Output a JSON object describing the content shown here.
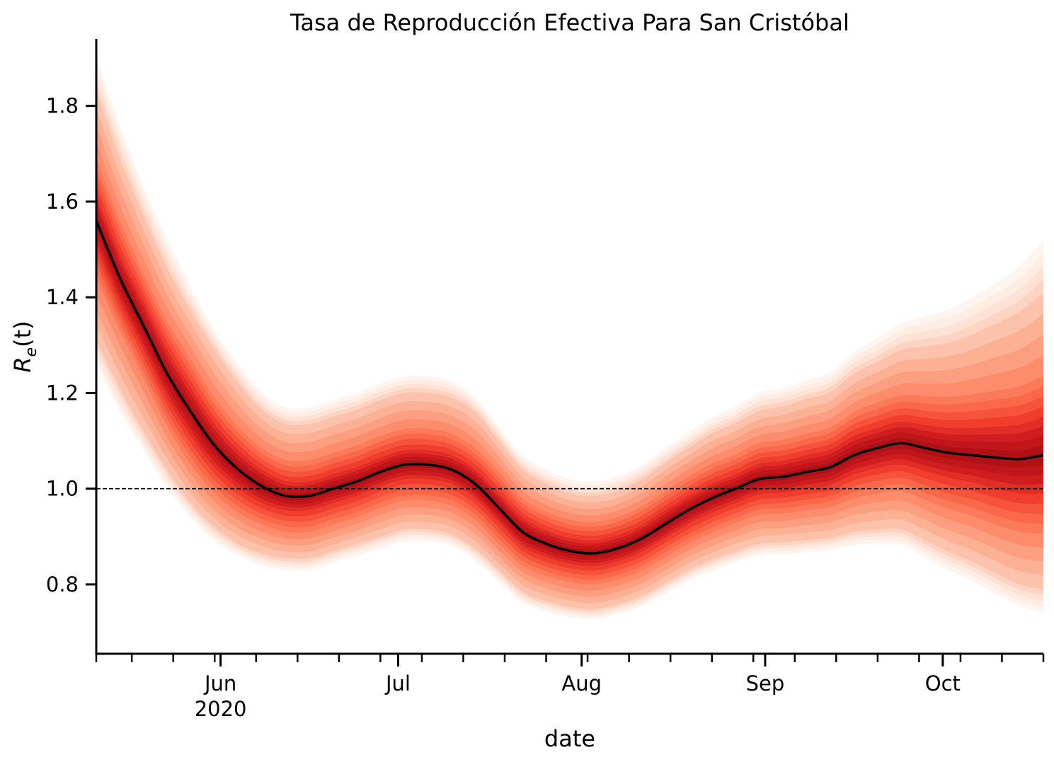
{
  "chart_data": {
    "type": "line",
    "title": "Tasa de Reproducción Efectiva Para San Cristóbal",
    "xlabel": "date",
    "ylabel": {
      "base": "R",
      "subscript": "e",
      "suffix": "(t)"
    },
    "xlim": [
      "2020-05-11",
      "2020-10-18"
    ],
    "ylim": [
      0.655,
      1.94
    ],
    "y_ticks": [
      "0.8",
      "1.0",
      "1.2",
      "1.4",
      "1.6",
      "1.8"
    ],
    "x_major_ticks": [
      {
        "date": "2020-06-01",
        "label": "Jun",
        "sublabel": "2020"
      },
      {
        "date": "2020-07-01",
        "label": "Jul"
      },
      {
        "date": "2020-08-01",
        "label": "Aug"
      },
      {
        "date": "2020-09-01",
        "label": "Sep"
      },
      {
        "date": "2020-10-01",
        "label": "Oct"
      }
    ],
    "x_minor_ticks": [
      "2020-05-11",
      "2020-05-17",
      "2020-05-24",
      "2020-05-31",
      "2020-06-07",
      "2020-06-14",
      "2020-06-21",
      "2020-06-28",
      "2020-07-05",
      "2020-07-12",
      "2020-07-19",
      "2020-07-26",
      "2020-08-02",
      "2020-08-09",
      "2020-08-16",
      "2020-08-23",
      "2020-08-30",
      "2020-09-06",
      "2020-09-13",
      "2020-09-20",
      "2020-09-27",
      "2020-10-04",
      "2020-10-11",
      "2020-10-18"
    ],
    "reference_line": {
      "y": 1.0,
      "style": "dashed"
    },
    "grid": false,
    "series": [
      {
        "x": [
          "2020-05-11",
          "2020-05-15",
          "2020-05-19",
          "2020-05-23",
          "2020-05-27",
          "2020-05-31",
          "2020-06-04",
          "2020-06-08",
          "2020-06-12",
          "2020-06-16",
          "2020-06-20",
          "2020-06-24",
          "2020-06-28",
          "2020-07-02",
          "2020-07-06",
          "2020-07-10",
          "2020-07-14",
          "2020-07-18",
          "2020-07-22",
          "2020-07-26",
          "2020-07-30",
          "2020-08-03",
          "2020-08-07",
          "2020-08-11",
          "2020-08-15",
          "2020-08-19",
          "2020-08-23",
          "2020-08-27",
          "2020-08-31",
          "2020-09-04",
          "2020-09-08",
          "2020-09-12",
          "2020-09-16",
          "2020-09-20",
          "2020-09-24",
          "2020-09-28",
          "2020-10-02",
          "2020-10-06",
          "2020-10-10",
          "2020-10-14",
          "2020-10-18"
        ],
        "median": [
          1.56,
          1.44,
          1.34,
          1.24,
          1.16,
          1.09,
          1.04,
          1.005,
          0.985,
          0.985,
          1.0,
          1.015,
          1.035,
          1.05,
          1.05,
          1.04,
          1.01,
          0.96,
          0.91,
          0.885,
          0.87,
          0.865,
          0.875,
          0.895,
          0.925,
          0.955,
          0.98,
          1.0,
          1.02,
          1.025,
          1.035,
          1.045,
          1.07,
          1.085,
          1.095,
          1.085,
          1.075,
          1.07,
          1.065,
          1.062,
          1.07
        ],
        "band_bounds": [
          {
            "level": 0.5,
            "lower": [
              1.505,
              1.39,
              1.29,
              1.19,
              1.11,
              1.045,
              1.0,
              0.97,
              0.955,
              0.955,
              0.97,
              0.985,
              1.005,
              1.02,
              1.02,
              1.01,
              0.98,
              0.93,
              0.88,
              0.857,
              0.843,
              0.838,
              0.848,
              0.867,
              0.896,
              0.926,
              0.95,
              0.97,
              0.988,
              0.992,
              1.0,
              1.008,
              1.03,
              1.043,
              1.05,
              1.037,
              1.023,
              1.013,
              1.0,
              0.99,
              0.99
            ],
            "upper": [
              1.615,
              1.49,
              1.39,
              1.29,
              1.21,
              1.135,
              1.08,
              1.04,
              1.015,
              1.015,
              1.03,
              1.045,
              1.065,
              1.08,
              1.08,
              1.07,
              1.04,
              0.99,
              0.94,
              0.913,
              0.897,
              0.892,
              0.902,
              0.923,
              0.954,
              0.984,
              1.01,
              1.03,
              1.052,
              1.058,
              1.07,
              1.082,
              1.11,
              1.127,
              1.14,
              1.133,
              1.127,
              1.127,
              1.13,
              1.134,
              1.15
            ]
          },
          {
            "level": 0.8,
            "lower": [
              1.44,
              1.33,
              1.23,
              1.13,
              1.05,
              0.99,
              0.95,
              0.925,
              0.91,
              0.91,
              0.925,
              0.94,
              0.96,
              0.975,
              0.975,
              0.965,
              0.935,
              0.885,
              0.84,
              0.818,
              0.805,
              0.8,
              0.81,
              0.828,
              0.856,
              0.885,
              0.908,
              0.928,
              0.945,
              0.948,
              0.955,
              0.962,
              0.98,
              0.99,
              0.995,
              0.977,
              0.958,
              0.943,
              0.925,
              0.91,
              0.905
            ],
            "upper": [
              1.69,
              1.56,
              1.45,
              1.35,
              1.27,
              1.19,
              1.13,
              1.085,
              1.06,
              1.06,
              1.075,
              1.09,
              1.11,
              1.125,
              1.125,
              1.115,
              1.085,
              1.035,
              0.98,
              0.952,
              0.935,
              0.93,
              0.94,
              0.962,
              0.994,
              1.025,
              1.052,
              1.072,
              1.095,
              1.102,
              1.115,
              1.128,
              1.16,
              1.18,
              1.195,
              1.193,
              1.192,
              1.197,
              1.205,
              1.214,
              1.235
            ]
          },
          {
            "level": 0.95,
            "lower": [
              1.31,
              1.21,
              1.12,
              1.04,
              0.97,
              0.92,
              0.885,
              0.865,
              0.855,
              0.855,
              0.87,
              0.885,
              0.9,
              0.915,
              0.915,
              0.905,
              0.875,
              0.83,
              0.785,
              0.765,
              0.753,
              0.748,
              0.758,
              0.775,
              0.802,
              0.83,
              0.852,
              0.87,
              0.885,
              0.888,
              0.893,
              0.898,
              0.91,
              0.915,
              0.915,
              0.893,
              0.868,
              0.848,
              0.823,
              0.8,
              0.79
            ],
            "upper": [
              1.83,
              1.69,
              1.57,
              1.46,
              1.37,
              1.29,
              1.22,
              1.165,
              1.135,
              1.135,
              1.15,
              1.165,
              1.185,
              1.2,
              1.2,
              1.19,
              1.16,
              1.1,
              1.04,
              1.01,
              0.99,
              0.985,
              0.995,
              1.018,
              1.052,
              1.085,
              1.115,
              1.137,
              1.162,
              1.172,
              1.187,
              1.202,
              1.24,
              1.265,
              1.29,
              1.297,
              1.305,
              1.322,
              1.345,
              1.37,
              1.41
            ]
          },
          {
            "level": 0.99,
            "lower": [
              1.26,
              1.16,
              1.08,
              1.0,
              0.94,
              0.89,
              0.86,
              0.84,
              0.83,
              0.83,
              0.845,
              0.86,
              0.875,
              0.89,
              0.89,
              0.88,
              0.85,
              0.805,
              0.762,
              0.743,
              0.732,
              0.727,
              0.737,
              0.753,
              0.78,
              0.807,
              0.828,
              0.846,
              0.86,
              0.863,
              0.867,
              0.872,
              0.882,
              0.885,
              0.882,
              0.857,
              0.83,
              0.807,
              0.78,
              0.755,
              0.74
            ],
            "upper": [
              1.9,
              1.76,
              1.63,
              1.52,
              1.42,
              1.33,
              1.26,
              1.2,
              1.17,
              1.17,
              1.185,
              1.2,
              1.22,
              1.235,
              1.235,
              1.225,
              1.19,
              1.13,
              1.07,
              1.04,
              1.02,
              1.015,
              1.025,
              1.048,
              1.083,
              1.117,
              1.148,
              1.172,
              1.2,
              1.21,
              1.227,
              1.243,
              1.285,
              1.315,
              1.345,
              1.36,
              1.375,
              1.4,
              1.43,
              1.465,
              1.52
            ]
          }
        ]
      }
    ],
    "colors": {
      "median": "#000000",
      "band_scale": [
        "#fff5f0",
        "#fee0d2",
        "#fcbba1",
        "#fc9272",
        "#fb6a4a",
        "#ef3b2c",
        "#cb181d",
        "#a50f15",
        "#67000d"
      ],
      "reference": "#000000"
    }
  }
}
